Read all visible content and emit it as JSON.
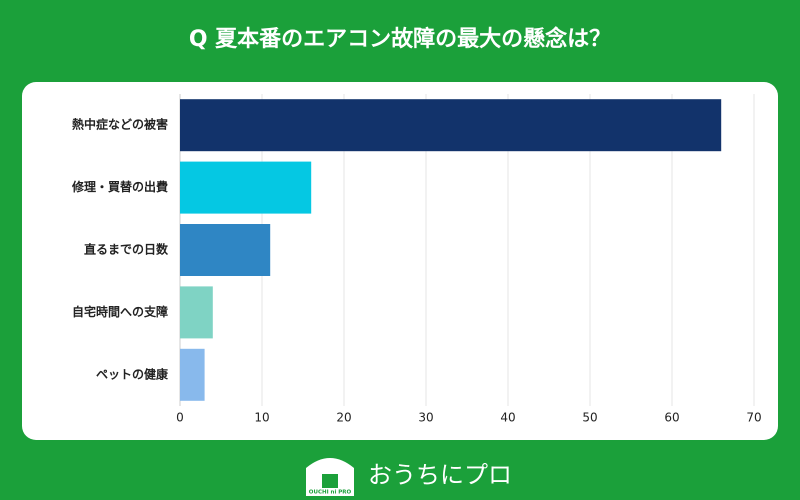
{
  "chart_data": {
    "type": "bar",
    "orientation": "horizontal",
    "title": "Q 夏本番のエアコン故障の最大の懸念は？",
    "categories": [
      "熱中症などの被害",
      "修理・買替の出費",
      "直るまでの日数",
      "自宅時間への支障",
      "ペットの健康"
    ],
    "values": [
      66,
      16,
      11,
      4,
      3
    ],
    "colors": [
      "#12336b",
      "#05c8e3",
      "#2f86c4",
      "#7fd3c4",
      "#88b9ec"
    ],
    "xlim": [
      0,
      70
    ],
    "xticks": [
      0,
      10,
      20,
      30,
      40,
      50,
      60,
      70
    ],
    "grid": true
  },
  "logo": {
    "icon_text": "OUCHI ni PRO",
    "text": "おうちにプロ"
  }
}
